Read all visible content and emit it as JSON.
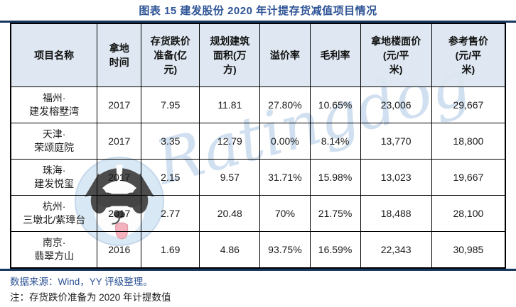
{
  "title": "图表 15 建发股份 2020 年计提存货减值项目情况",
  "watermark": {
    "text": "Ratingdog",
    "mascot": "ratingdog-dog-mascot"
  },
  "table": {
    "headers": [
      "项目名称",
      "拿地\n时间",
      "存货跌价\n准备(亿\n元)",
      "规划建筑\n面积(万\n方)",
      "溢价率",
      "毛利率",
      "拿地楼面价\n(元/平\n米)",
      "参考售价\n(元/平\n米)"
    ],
    "rows": [
      [
        "福州·\n建发榕墅湾",
        "2017",
        "7.95",
        "11.81",
        "27.80%",
        "10.65%",
        "23,006",
        "29,667"
      ],
      [
        "天津·\n荣颂庭院",
        "2017",
        "3.35",
        "12.79",
        "0.00%",
        "8.14%",
        "13,770",
        "18,800"
      ],
      [
        "珠海·\n建发悦玺",
        "2017",
        "2.15",
        "9.57",
        "31.71%",
        "15.98%",
        "13,023",
        "19,667"
      ],
      [
        "杭州·\n三墩北/紫璋台",
        "2017",
        "2.77",
        "20.48",
        "70%",
        "21.75%",
        "18,488",
        "28,100"
      ],
      [
        "南京·\n翡翠方山",
        "2016",
        "1.69",
        "4.86",
        "93.75%",
        "16.59%",
        "22,343",
        "30,985"
      ]
    ]
  },
  "footer": {
    "source": "数据来源：Wind，YY 评级整理。",
    "note": "注：存货跌价准备为 2020 年计提数值"
  },
  "colors": {
    "title_text": "#2E5496",
    "header_bg": "#DCE6F1",
    "rule": "#17365D",
    "source_text": "#2E5496",
    "watermark": "#ABC7E4",
    "cell_border": "#000000"
  }
}
